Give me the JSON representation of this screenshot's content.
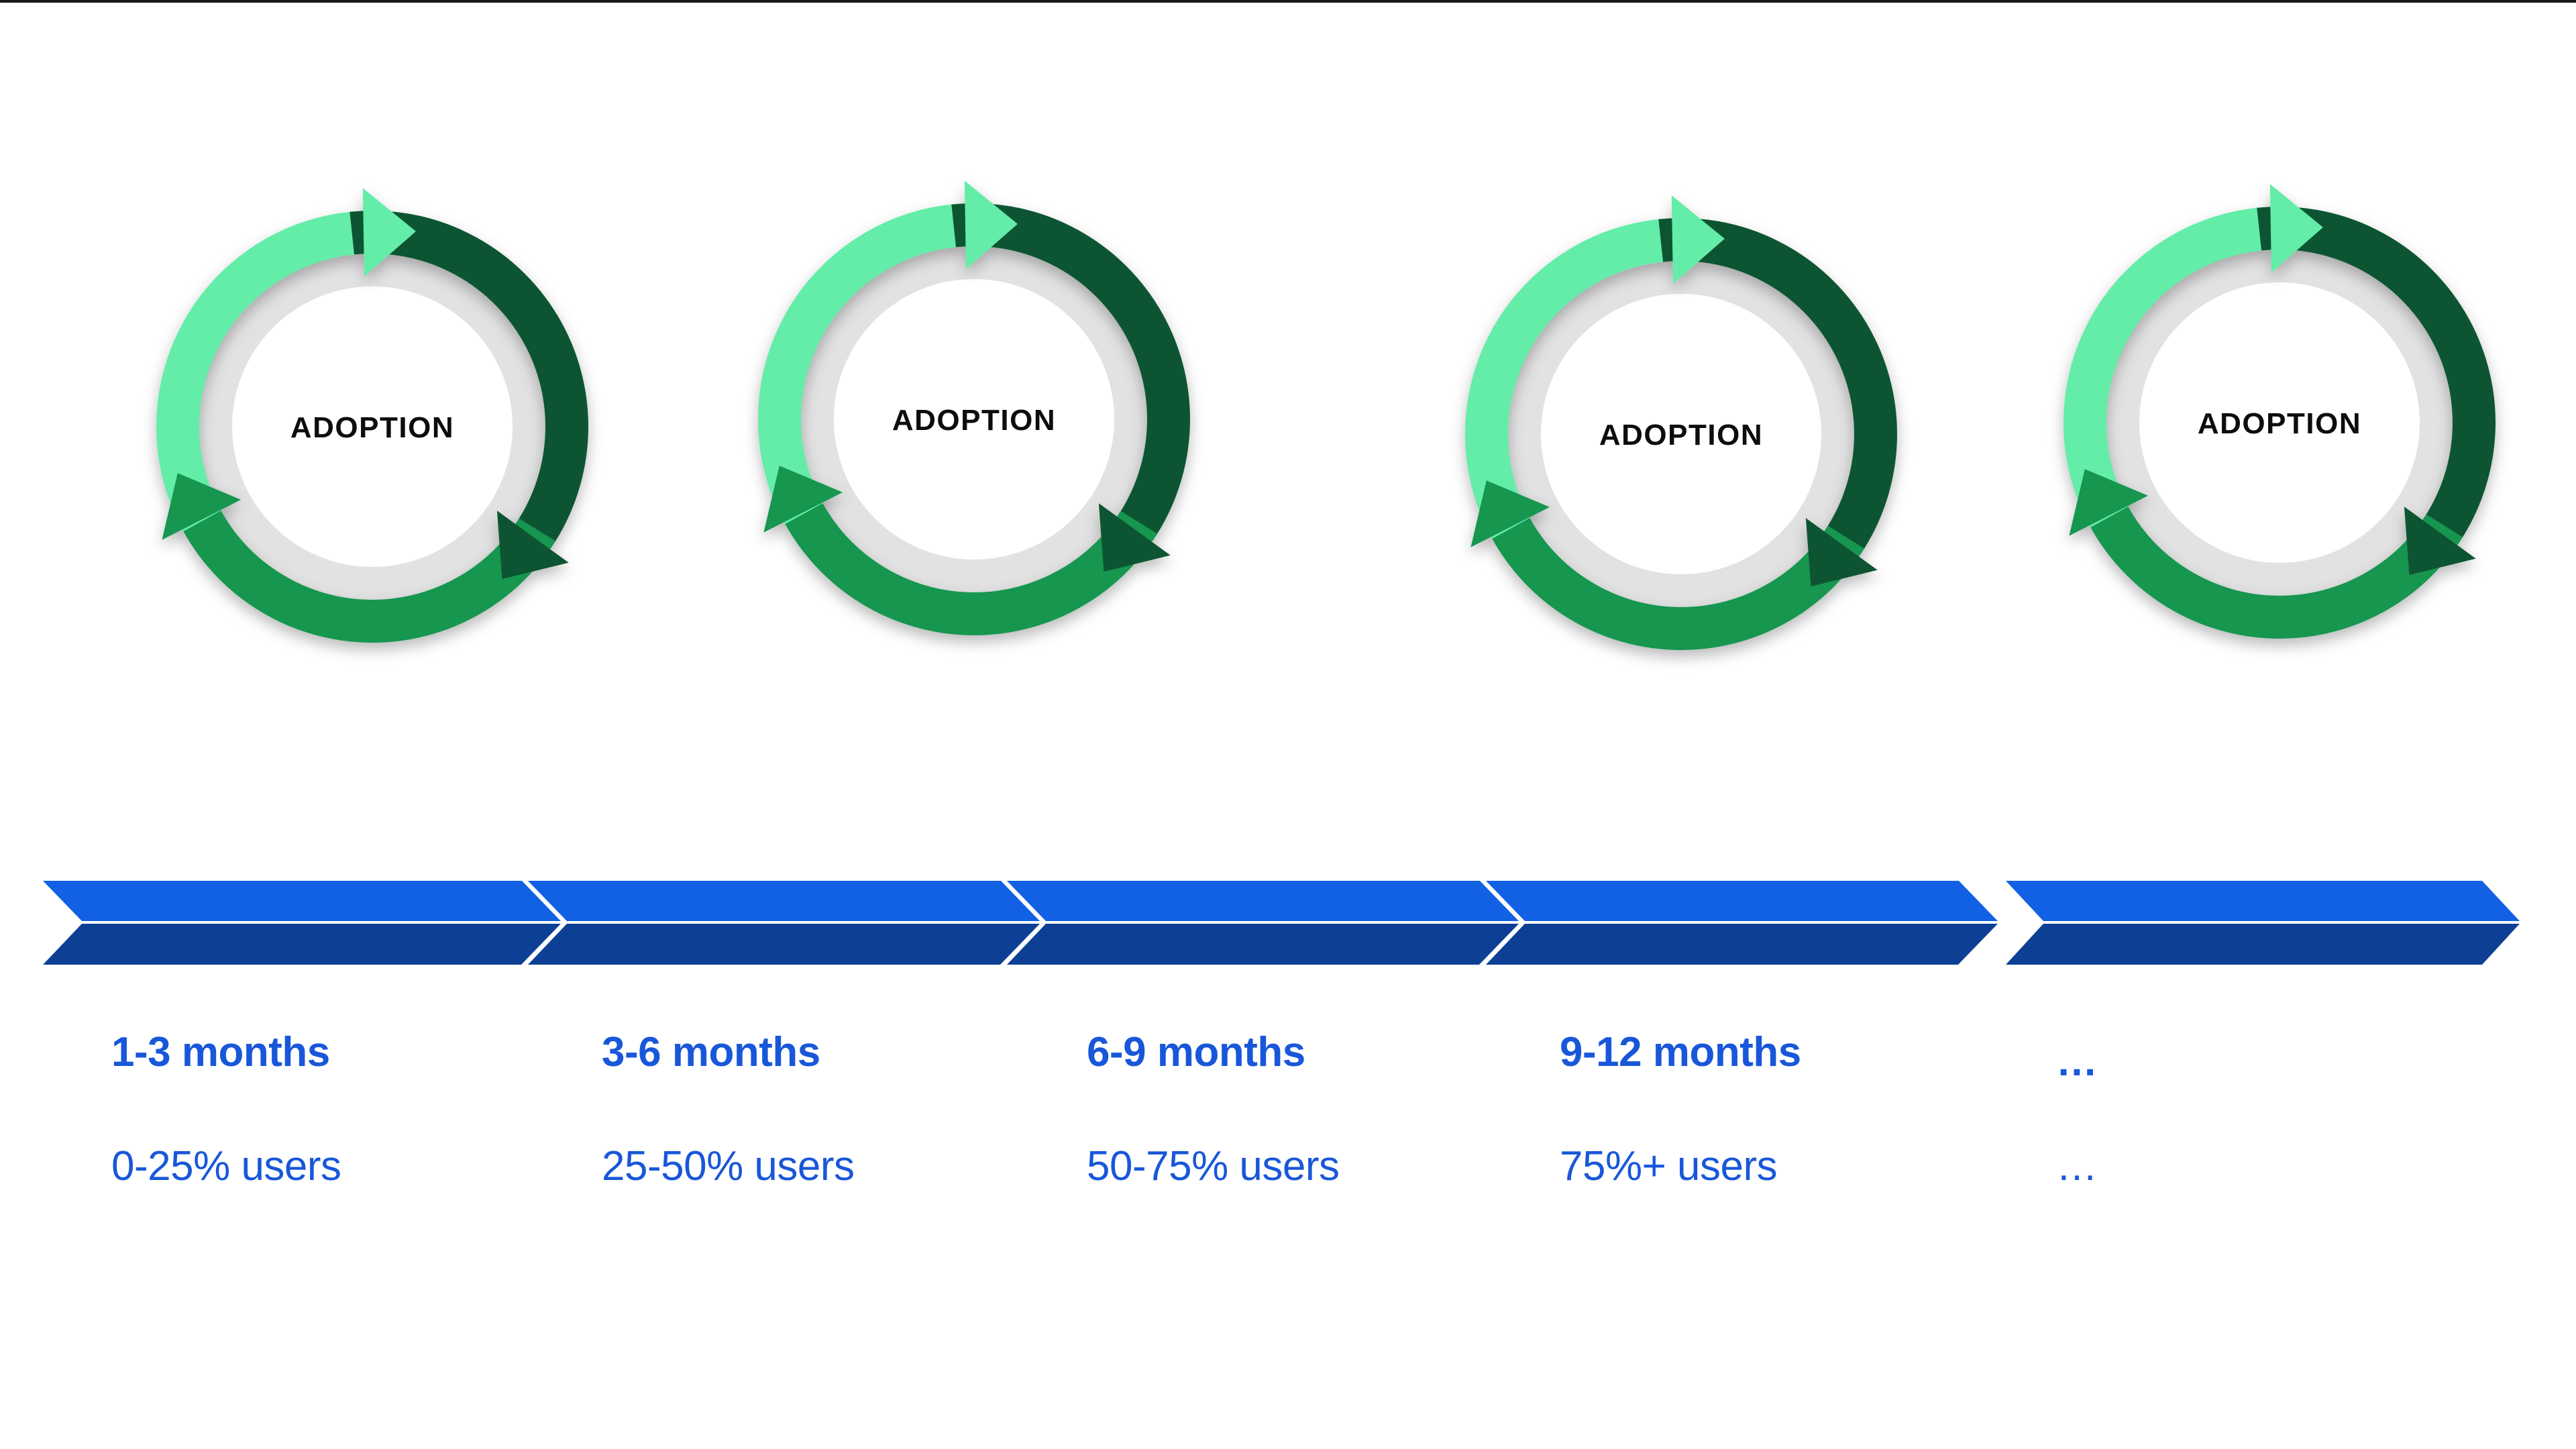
{
  "top_border": {
    "color": "#191919"
  },
  "cycle": {
    "colors": {
      "mint": "#63EDA8",
      "dark": "#0A5430",
      "medium": "#12964F",
      "ring": "#E2E2E2",
      "center": "#FFFFFF",
      "label": "#0D0D0D"
    }
  },
  "circles": [
    {
      "label": "ADOPTION"
    },
    {
      "label": "ADOPTION"
    },
    {
      "label": "ADOPTION"
    },
    {
      "label": "ADOPTION"
    }
  ],
  "timeline": {
    "colors": {
      "top": "#1261E4",
      "bottom": "#0D4094",
      "label": "#1857D9"
    },
    "segments": [
      {
        "period": "1-3 months",
        "users": "0-25% users"
      },
      {
        "period": "3-6 months",
        "users": "25-50% users"
      },
      {
        "period": "6-9 months",
        "users": "50-75% users"
      },
      {
        "period": "9-12 months",
        "users": "75%+ users"
      },
      {
        "period": "…",
        "users": "…"
      }
    ]
  }
}
